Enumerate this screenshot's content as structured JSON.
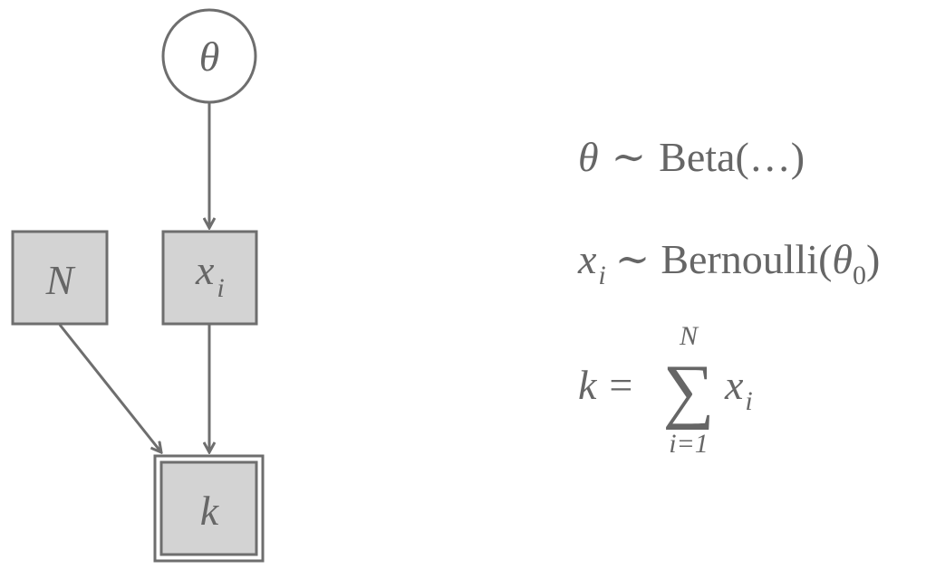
{
  "colors": {
    "stroke": "#6e6e6e",
    "node_fill": "#d3d3d3",
    "text": "#666666",
    "background": "#ffffff"
  },
  "nodes": {
    "theta": {
      "label": "θ",
      "shape": "circle",
      "observed": false
    },
    "N": {
      "label": "N",
      "shape": "square",
      "observed": true
    },
    "x": {
      "label": "x",
      "subscript": "i",
      "shape": "square",
      "observed": true
    },
    "k": {
      "label": "k",
      "shape": "double-square",
      "observed": true,
      "deterministic": true
    }
  },
  "edges": [
    {
      "from": "theta",
      "to": "x"
    },
    {
      "from": "N",
      "to": "k"
    },
    {
      "from": "x",
      "to": "k"
    }
  ],
  "equations": {
    "eq1": {
      "lhs": "θ",
      "op": "∼",
      "rhs": "Beta(…)"
    },
    "eq2": {
      "lhs": "x",
      "lhs_sub": "i",
      "op": "∼",
      "rhs_fn": "Bernoulli(",
      "rhs_var": "θ",
      "rhs_sub": "0",
      "rhs_close": ")"
    },
    "eq3": {
      "lhs": "k",
      "op": "=",
      "sum_symbol": "∑",
      "sum_upper": "N",
      "sum_lower": "i=1",
      "term": "x",
      "term_sub": "i"
    }
  }
}
